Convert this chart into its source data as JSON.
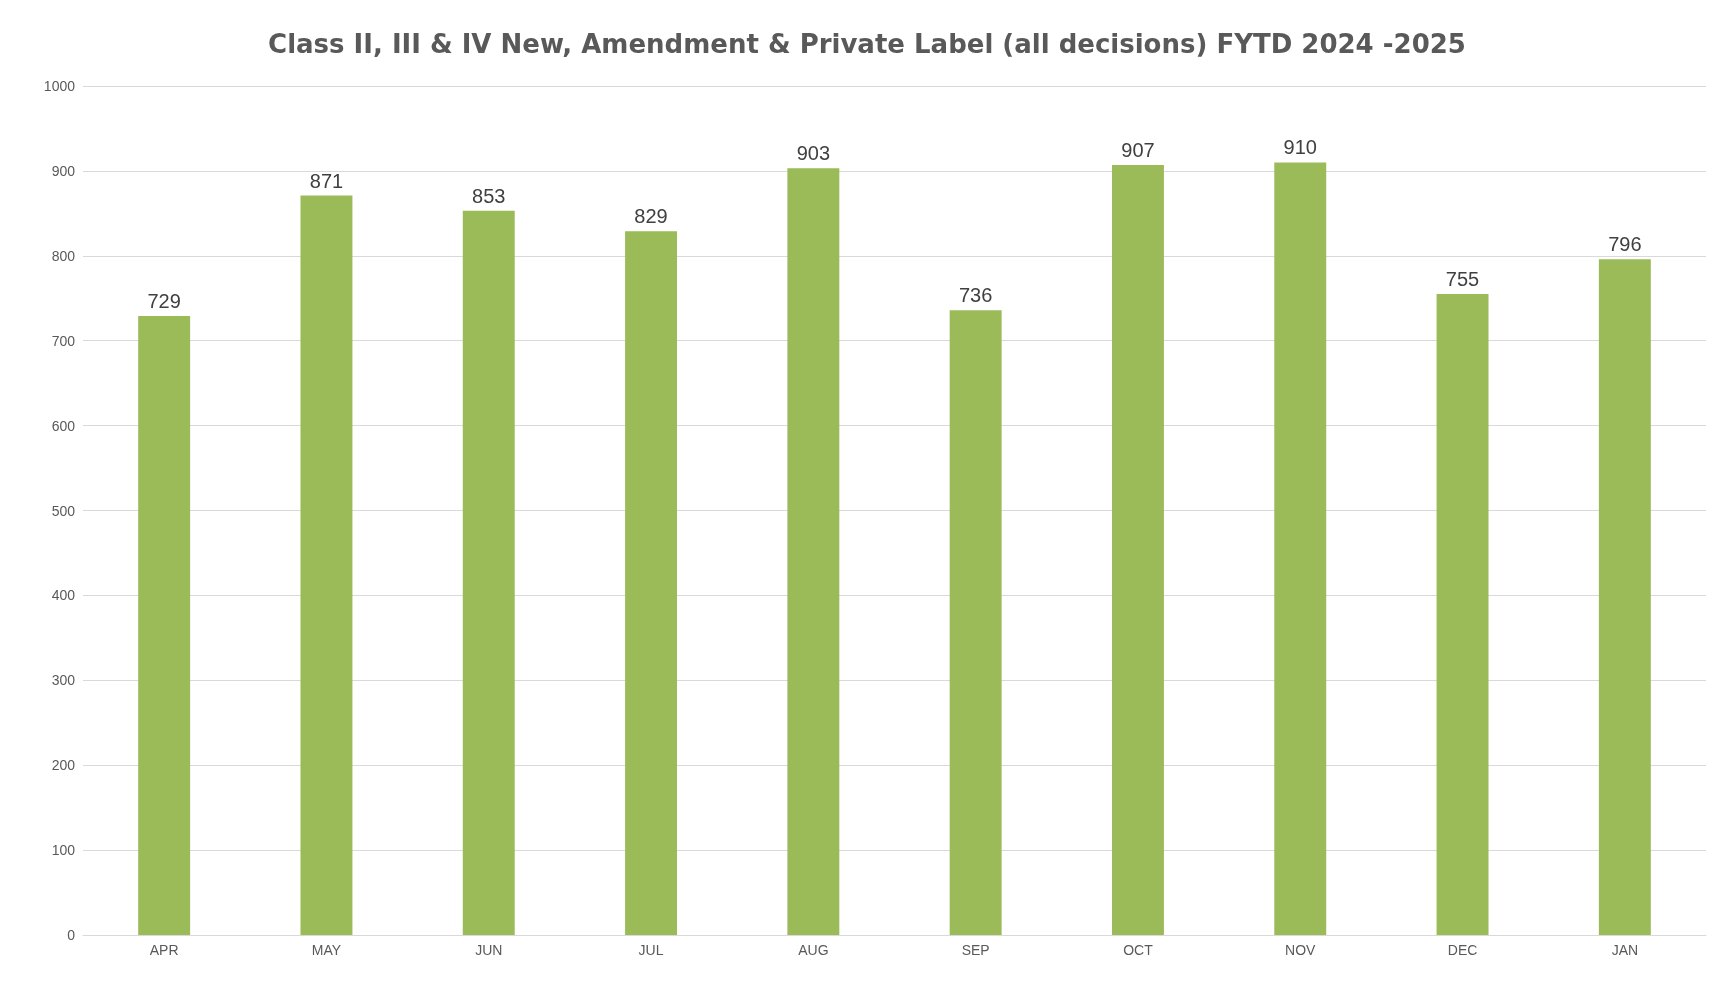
{
  "chart_data": {
    "type": "bar",
    "title": "Class II, III & IV New, Amendment & Private Label (all decisions) FYTD 2024 -2025",
    "categories": [
      "APR",
      "MAY",
      "JUN",
      "JUL",
      "AUG",
      "SEP",
      "OCT",
      "NOV",
      "DEC",
      "JAN"
    ],
    "values": [
      729,
      871,
      853,
      829,
      903,
      736,
      907,
      910,
      755,
      796
    ],
    "color": "#9bbb59",
    "ylim": [
      0,
      1000
    ],
    "yticks": [
      0,
      100,
      200,
      300,
      400,
      500,
      600,
      700,
      800,
      900,
      1000
    ],
    "grid": "y",
    "data_labels": true
  }
}
